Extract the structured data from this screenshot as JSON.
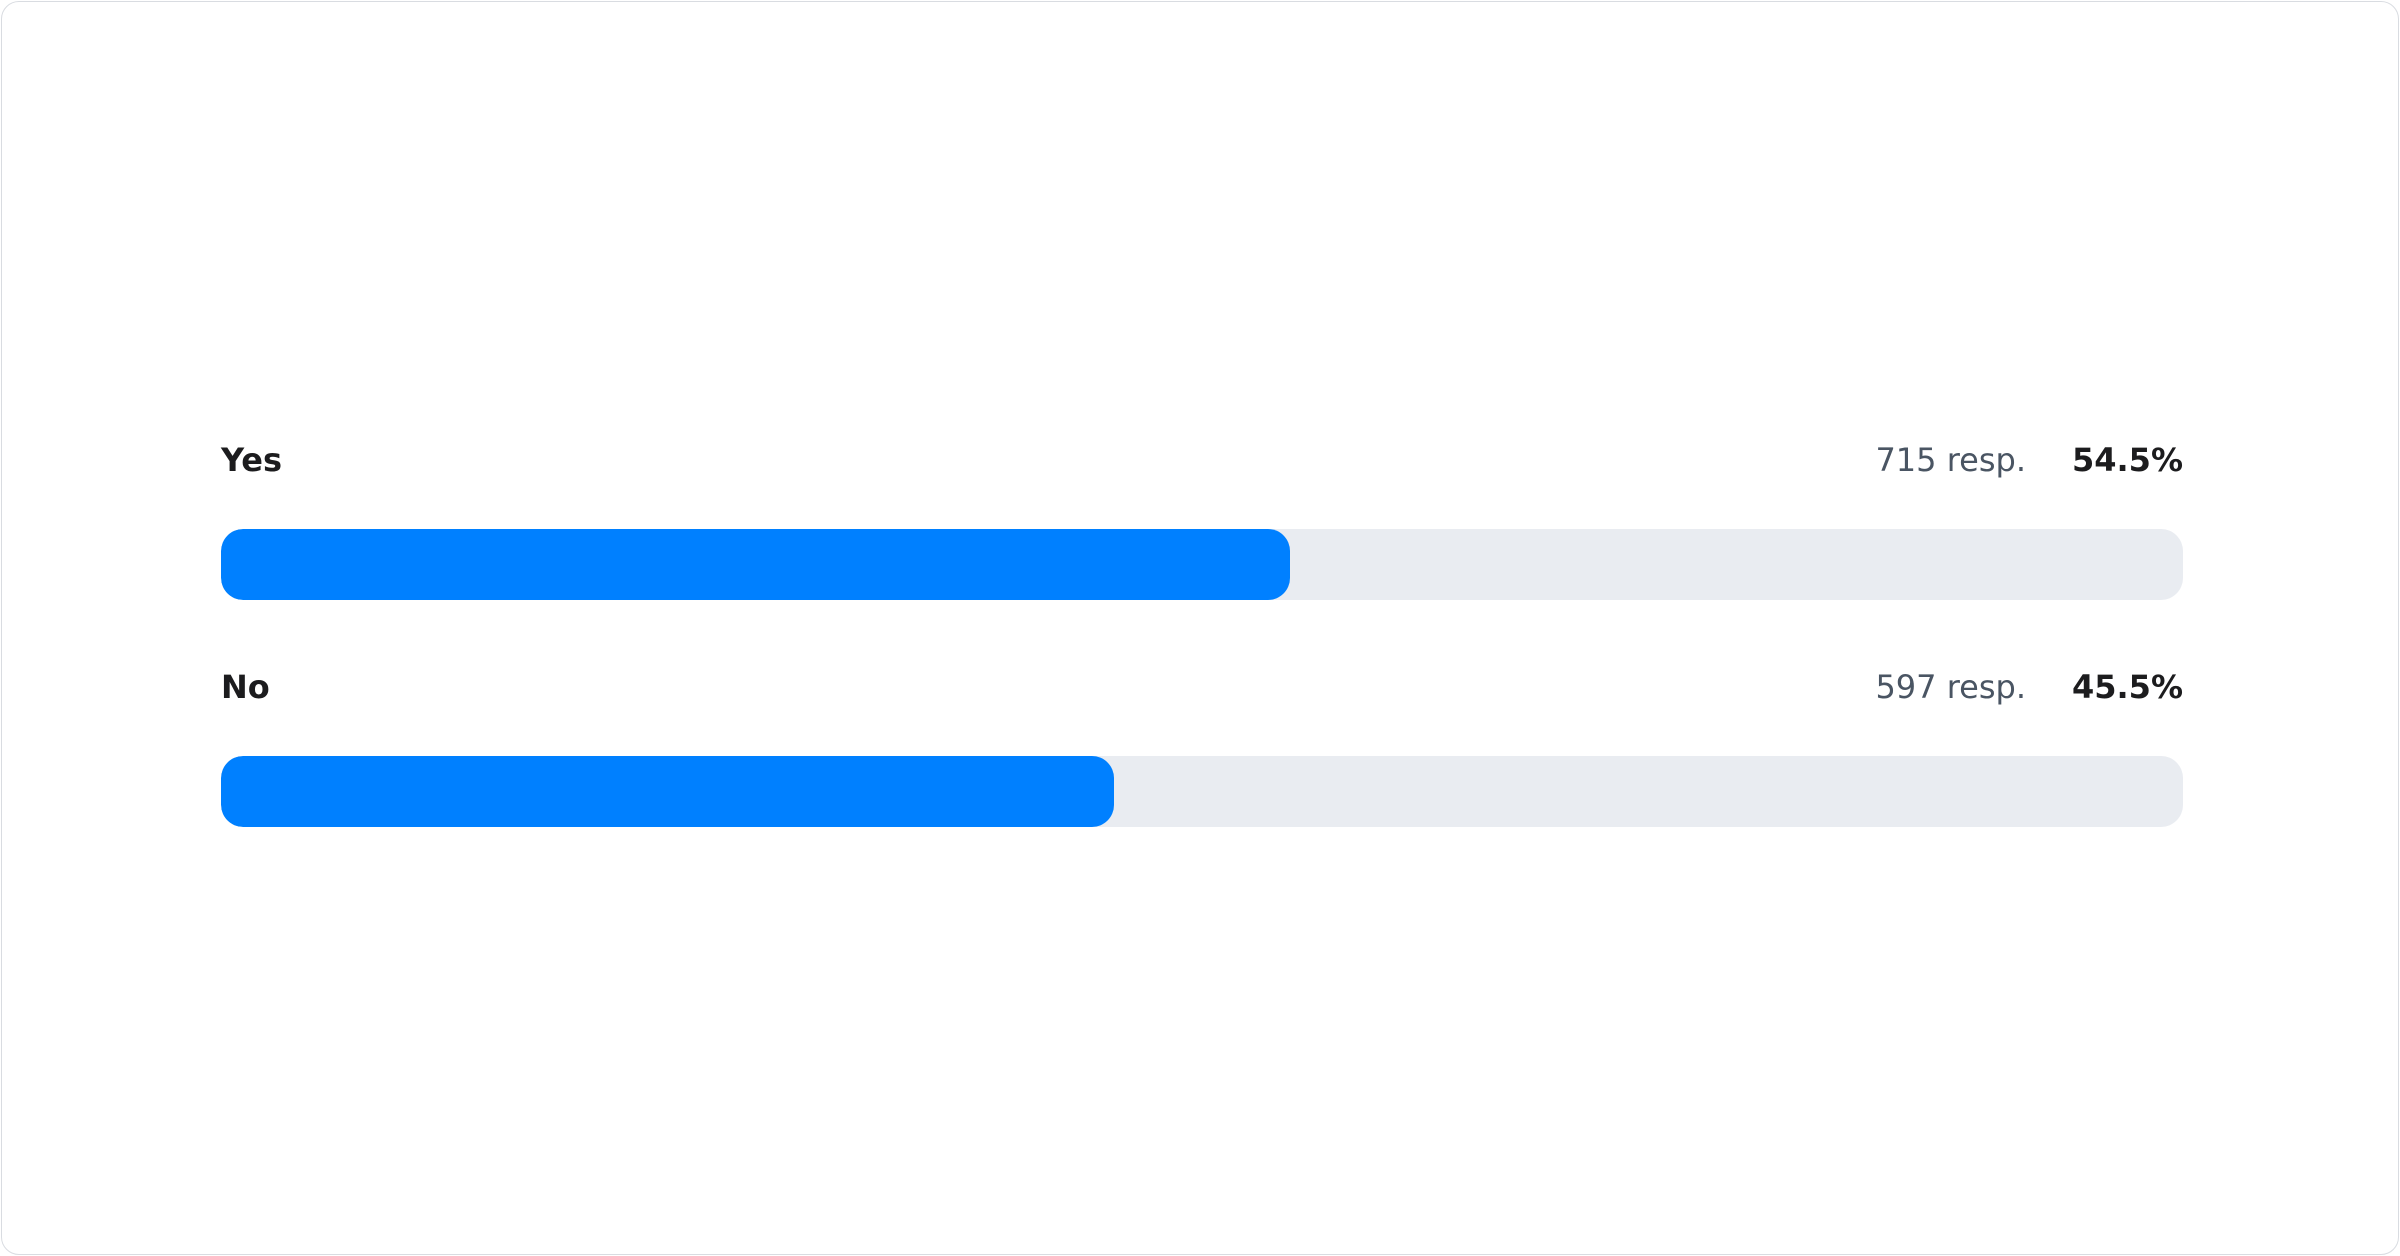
{
  "chart_data": {
    "type": "bar",
    "orientation": "horizontal",
    "categories": [
      "Yes",
      "No"
    ],
    "responses": [
      "715 resp.",
      "597 resp."
    ],
    "percent_labels": [
      "54.5%",
      "45.5%"
    ],
    "values": [
      54.5,
      45.5
    ],
    "xlim": [
      0,
      100
    ],
    "grid": false,
    "colors": {
      "fill": "#0080ff",
      "track": "#e9ecf1"
    }
  }
}
